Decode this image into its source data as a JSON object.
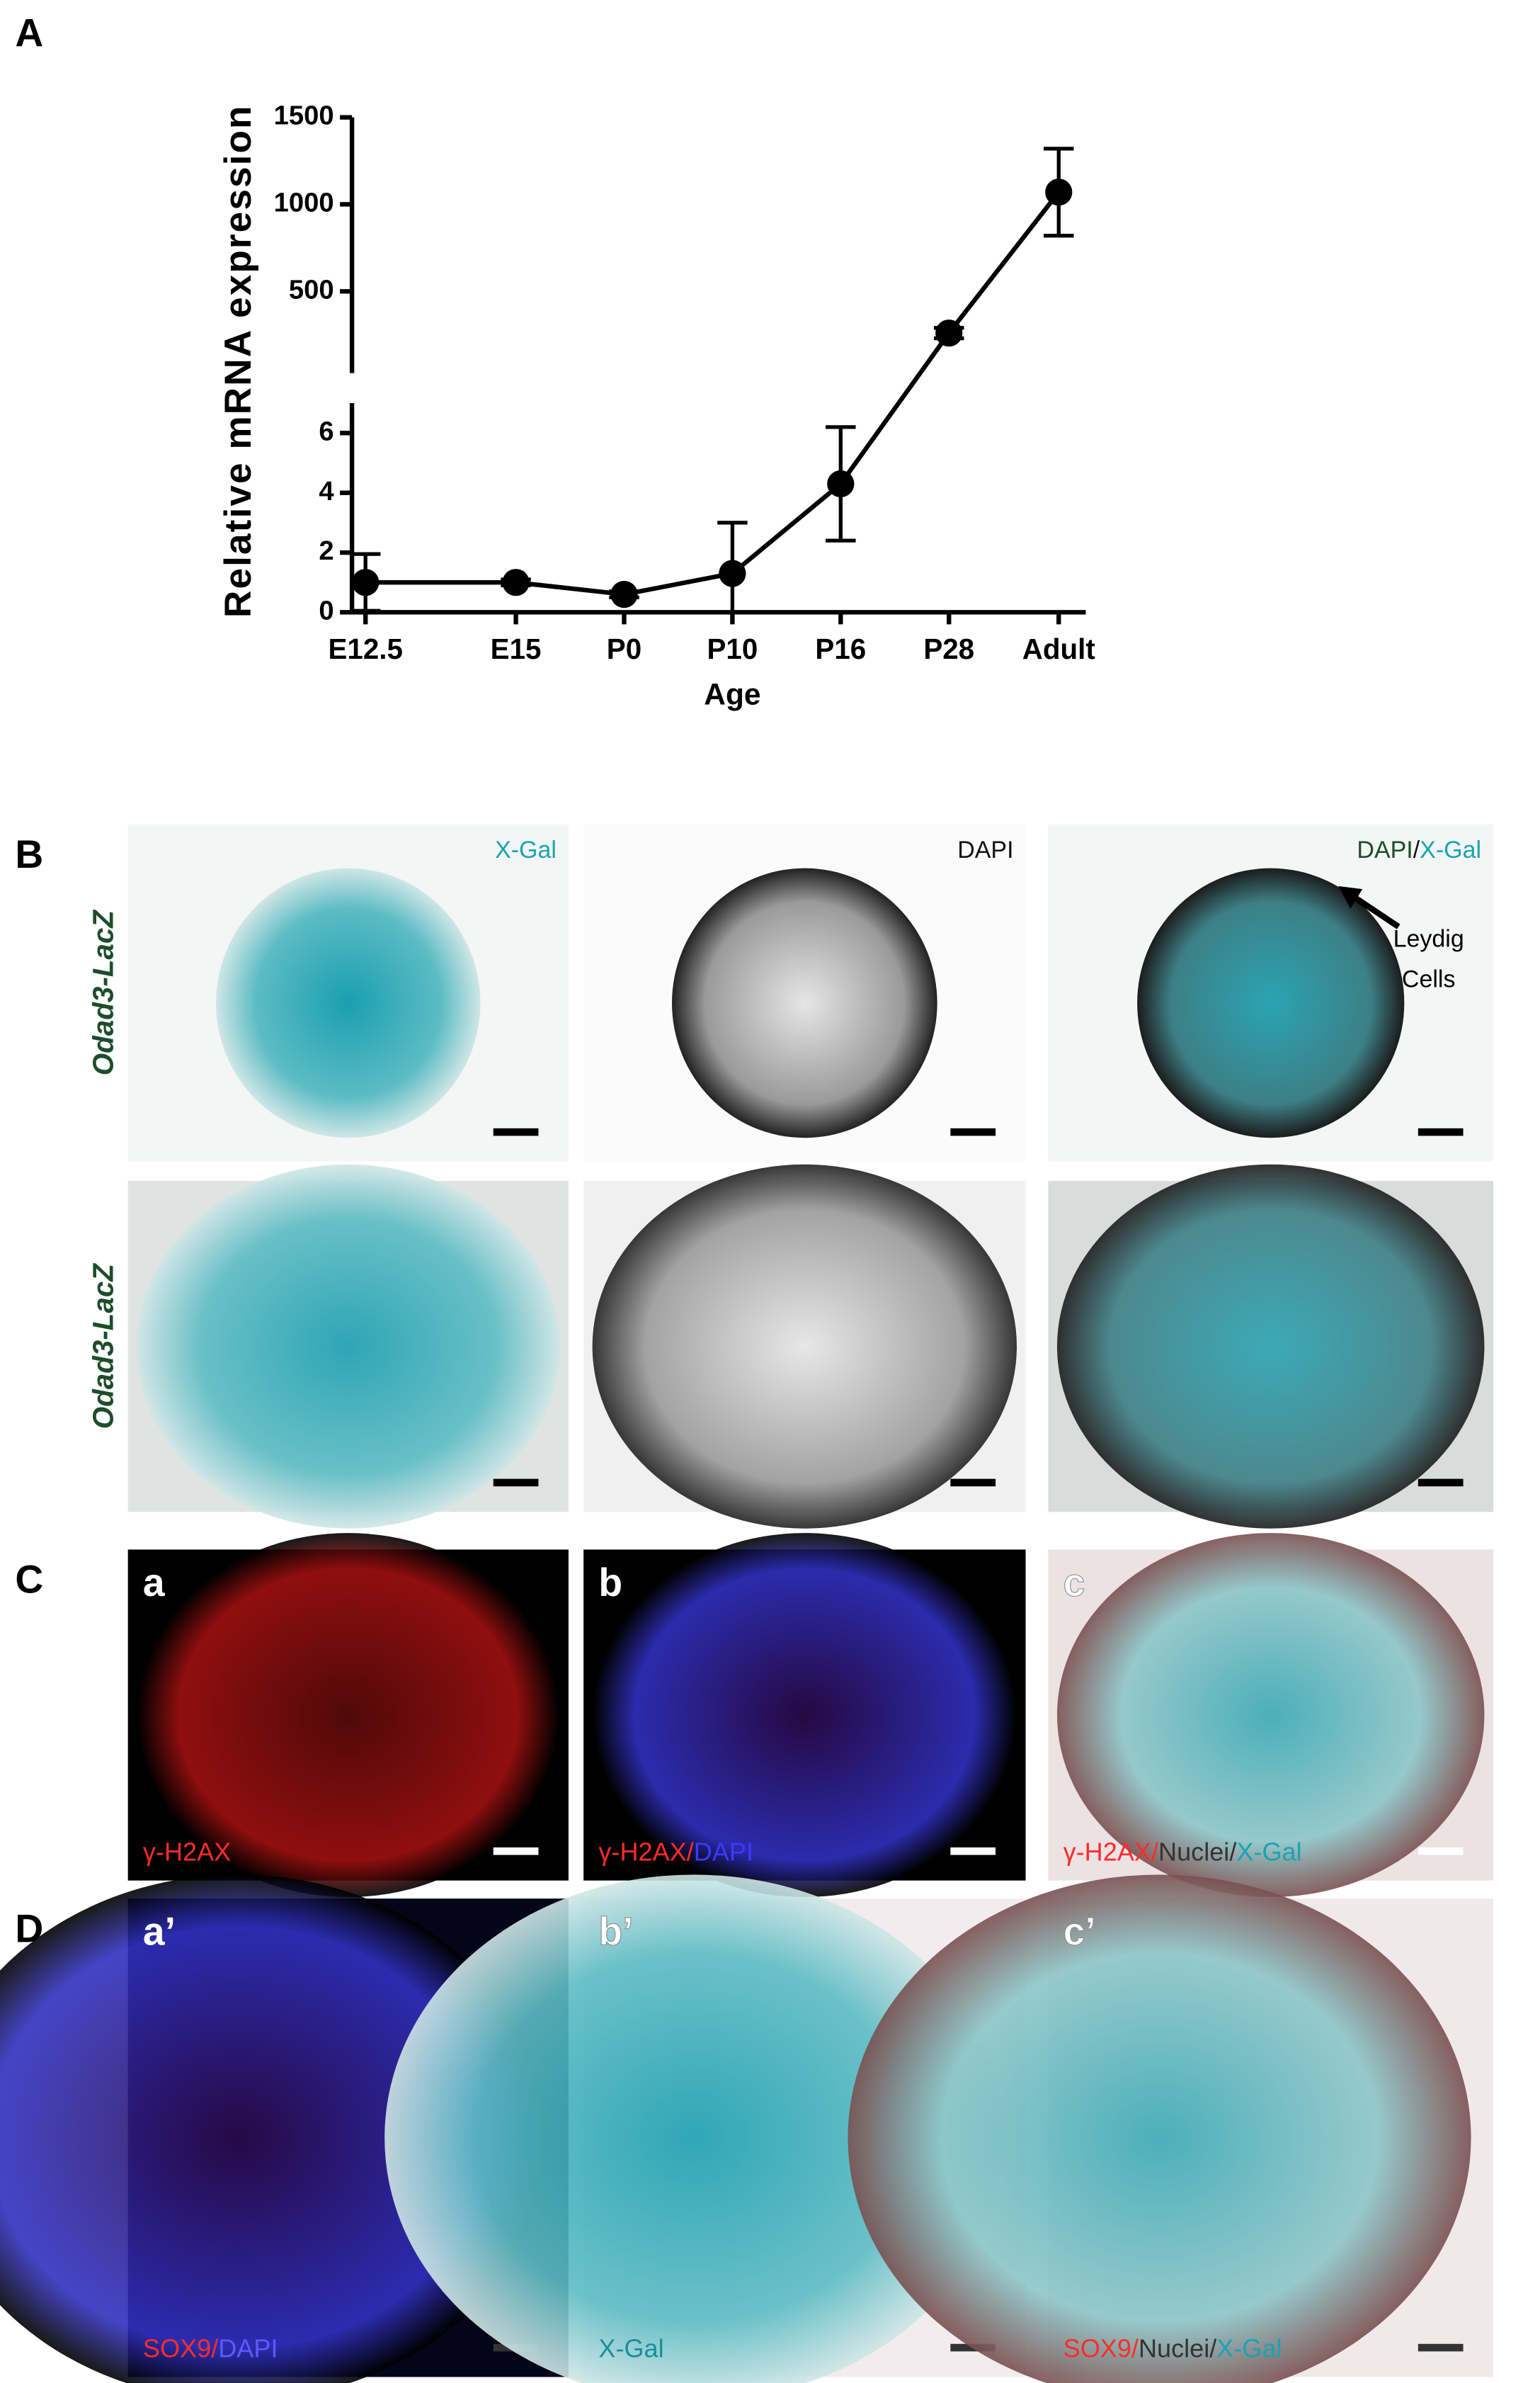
{
  "chart_data": {
    "type": "line",
    "panel_label": "A",
    "y_label": "Relative mRNA expression",
    "x_label": "Age",
    "categories": [
      "E12.5",
      "E15",
      "P0",
      "P10",
      "P16",
      "P28",
      "Adult"
    ],
    "values": [
      1,
      1,
      0.6,
      1.3,
      4.3,
      260,
      1070
    ],
    "errors": [
      0.95,
      0.1,
      0.1,
      1.7,
      1.9,
      30,
      250
    ],
    "color": "#000000",
    "y_segments": [
      {
        "ylim": [
          0,
          7
        ],
        "yticks": [
          0,
          2,
          4,
          6
        ]
      },
      {
        "ylim": [
          30,
          1500
        ],
        "yticks": [
          500,
          1000,
          1500
        ]
      }
    ]
  },
  "panels": [
    {
      "label": "B",
      "side_label": "Odad3-LacZ",
      "images": [
        {
          "caption": [
            {
              "text": "X-Gal",
              "color": "#1aa3b5"
            }
          ]
        },
        {
          "caption": [
            {
              "text": "DAPI",
              "color": "#111111"
            }
          ]
        },
        {
          "caption": [
            {
              "text": "DAPI",
              "color": "#1d4d2b"
            },
            {
              "text": "/",
              "color": "#111111"
            },
            {
              "text": "X-Gal",
              "color": "#1aa3b5"
            }
          ],
          "annotation": [
            "Leydig",
            "Cells"
          ]
        }
      ]
    },
    {
      "side_label": "Odad3-LacZ"
    },
    {
      "label": "C",
      "images": [
        {
          "letter": "a",
          "caption": [
            {
              "text": "γ-H2AX",
              "color": "#ff2a2a"
            }
          ]
        },
        {
          "letter": "b",
          "caption": [
            {
              "text": "γ-H2AX",
              "color": "#ff2a2a"
            },
            {
              "text": "/",
              "color": "#ff2a2a"
            },
            {
              "text": "DAPI",
              "color": "#3a3aff"
            }
          ]
        },
        {
          "letter": "c",
          "caption": [
            {
              "text": "γ-H2AX",
              "color": "#ff2a2a"
            },
            {
              "text": "/",
              "color": "#ff2a2a"
            },
            {
              "text": "Nuclei",
              "color": "#333333"
            },
            {
              "text": "/",
              "color": "#333333"
            },
            {
              "text": "X-Gal",
              "color": "#1aa3b5"
            }
          ]
        }
      ]
    },
    {
      "label": "D",
      "images": [
        {
          "letter": "a’",
          "caption": [
            {
              "text": "SOX9",
              "color": "#ff2a2a"
            },
            {
              "text": "/",
              "color": "#ff2a2a"
            },
            {
              "text": "DAPI",
              "color": "#5a5aff"
            }
          ]
        },
        {
          "letter": "b’",
          "caption": [
            {
              "text": "X-Gal",
              "color": "#1a8f9a"
            }
          ]
        },
        {
          "letter": "c’",
          "caption": [
            {
              "text": "SOX9",
              "color": "#ff2a2a"
            },
            {
              "text": "/",
              "color": "#ff2a2a"
            },
            {
              "text": "Nuclei",
              "color": "#333333"
            },
            {
              "text": "/",
              "color": "#333333"
            },
            {
              "text": "X-Gal",
              "color": "#1aa3b5"
            }
          ]
        }
      ]
    }
  ]
}
